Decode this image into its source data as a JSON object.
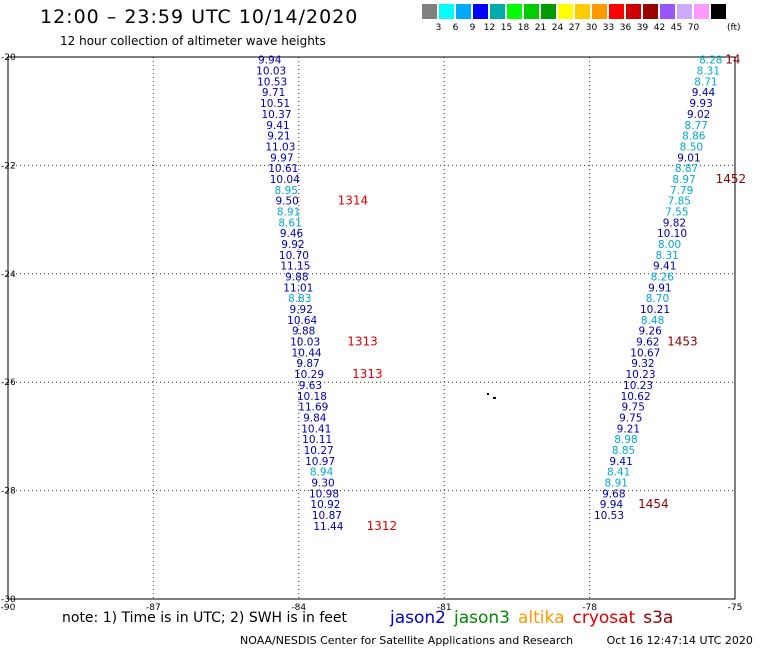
{
  "header": {
    "title": "12:00 – 23:59 UTC 10/14/2020",
    "subtitle": "12 hour collection of altimeter wave heights"
  },
  "scale": {
    "colors": [
      "#808080",
      "#00ffff",
      "#00aaff",
      "#0000ff",
      "#00aaaa",
      "#00ff00",
      "#00cc00",
      "#009900",
      "#ffff00",
      "#ffcc00",
      "#ff9900",
      "#ff0000",
      "#cc0000",
      "#990000",
      "#9955ff",
      "#ccaaff",
      "#ff99ff",
      "#000000"
    ],
    "labels": [
      "3",
      "6",
      "9",
      "12",
      "15",
      "18",
      "21",
      "24",
      "27",
      "30",
      "33",
      "36",
      "39",
      "42",
      "45",
      "70"
    ],
    "unit": "(ft)"
  },
  "colors": {
    "dark_blue": "#0000aa",
    "cyan": "#00aacc",
    "red": "#dd0000",
    "dark_red": "#880000"
  },
  "chart_data": {
    "type": "scatter",
    "xlim": [
      -90,
      -75
    ],
    "ylim": [
      -30,
      -20
    ],
    "x_ticks": [
      "-90",
      "-87",
      "-84",
      "-81",
      "-78",
      "-75"
    ],
    "x_tick_values": [
      -90,
      -87,
      -84,
      -81,
      -78,
      -75
    ],
    "y_ticks": [
      "-20",
      "-22",
      "-24",
      "-26",
      "-28",
      "-30"
    ],
    "y_tick_values": [
      -20,
      -22,
      -24,
      -26,
      -28,
      -30
    ],
    "grid": true,
    "points": [
      {
        "x": -84.6,
        "y": -20.05,
        "text": "9.94",
        "c": "dark_blue"
      },
      {
        "x": -84.57,
        "y": -20.25,
        "text": "10.03",
        "c": "dark_blue"
      },
      {
        "x": -84.55,
        "y": -20.45,
        "text": "10.53",
        "c": "dark_blue"
      },
      {
        "x": -84.52,
        "y": -20.65,
        "text": "9.71",
        "c": "dark_blue"
      },
      {
        "x": -84.49,
        "y": -20.85,
        "text": "10.51",
        "c": "dark_blue"
      },
      {
        "x": -84.46,
        "y": -21.05,
        "text": "10.37",
        "c": "dark_blue"
      },
      {
        "x": -84.43,
        "y": -21.25,
        "text": "9.41",
        "c": "dark_blue"
      },
      {
        "x": -84.41,
        "y": -21.45,
        "text": "9.21",
        "c": "dark_blue"
      },
      {
        "x": -84.38,
        "y": -21.65,
        "text": "11.03",
        "c": "dark_blue"
      },
      {
        "x": -84.35,
        "y": -21.85,
        "text": "9.97",
        "c": "dark_blue"
      },
      {
        "x": -84.32,
        "y": -22.05,
        "text": "10.61",
        "c": "dark_blue"
      },
      {
        "x": -84.29,
        "y": -22.25,
        "text": "10.04",
        "c": "dark_blue"
      },
      {
        "x": -84.26,
        "y": -22.45,
        "text": "8.95",
        "c": "cyan"
      },
      {
        "x": -84.24,
        "y": -22.65,
        "text": "9.50",
        "c": "dark_blue"
      },
      {
        "x": -84.21,
        "y": -22.85,
        "text": "8.91",
        "c": "cyan"
      },
      {
        "x": -84.18,
        "y": -23.05,
        "text": "8.61",
        "c": "cyan"
      },
      {
        "x": -84.15,
        "y": -23.25,
        "text": "9.46",
        "c": "dark_blue"
      },
      {
        "x": -84.12,
        "y": -23.45,
        "text": "9.92",
        "c": "dark_blue"
      },
      {
        "x": -84.1,
        "y": -23.65,
        "text": "10.70",
        "c": "dark_blue"
      },
      {
        "x": -84.07,
        "y": -23.85,
        "text": "11.15",
        "c": "dark_blue"
      },
      {
        "x": -84.04,
        "y": -24.05,
        "text": "9.88",
        "c": "dark_blue"
      },
      {
        "x": -84.01,
        "y": -24.25,
        "text": "11.01",
        "c": "dark_blue"
      },
      {
        "x": -83.98,
        "y": -24.45,
        "text": "8.83",
        "c": "cyan"
      },
      {
        "x": -83.95,
        "y": -24.65,
        "text": "9.92",
        "c": "dark_blue"
      },
      {
        "x": -83.93,
        "y": -24.85,
        "text": "10.64",
        "c": "dark_blue"
      },
      {
        "x": -83.9,
        "y": -25.05,
        "text": "9.88",
        "c": "dark_blue"
      },
      {
        "x": -83.87,
        "y": -25.25,
        "text": "10.03",
        "c": "dark_blue"
      },
      {
        "x": -83.84,
        "y": -25.45,
        "text": "10.44",
        "c": "dark_blue"
      },
      {
        "x": -83.81,
        "y": -25.65,
        "text": "9.87",
        "c": "dark_blue"
      },
      {
        "x": -83.79,
        "y": -25.85,
        "text": "10.29",
        "c": "dark_blue"
      },
      {
        "x": -83.76,
        "y": -26.05,
        "text": "9.63",
        "c": "dark_blue"
      },
      {
        "x": -83.73,
        "y": -26.25,
        "text": "10.18",
        "c": "dark_blue"
      },
      {
        "x": -83.7,
        "y": -26.45,
        "text": "11.69",
        "c": "dark_blue"
      },
      {
        "x": -83.67,
        "y": -26.65,
        "text": "9.84",
        "c": "dark_blue"
      },
      {
        "x": -83.64,
        "y": -26.85,
        "text": "10.41",
        "c": "dark_blue"
      },
      {
        "x": -83.62,
        "y": -27.05,
        "text": "10.11",
        "c": "dark_blue"
      },
      {
        "x": -83.59,
        "y": -27.25,
        "text": "10.27",
        "c": "dark_blue"
      },
      {
        "x": -83.56,
        "y": -27.45,
        "text": "10.97",
        "c": "dark_blue"
      },
      {
        "x": -83.53,
        "y": -27.65,
        "text": "8.94",
        "c": "cyan"
      },
      {
        "x": -83.5,
        "y": -27.85,
        "text": "9.30",
        "c": "dark_blue"
      },
      {
        "x": -83.48,
        "y": -28.05,
        "text": "10.98",
        "c": "dark_blue"
      },
      {
        "x": -83.45,
        "y": -28.25,
        "text": "10.92",
        "c": "dark_blue"
      },
      {
        "x": -83.42,
        "y": -28.45,
        "text": "10.87",
        "c": "dark_blue"
      },
      {
        "x": -83.39,
        "y": -28.65,
        "text": "11.44",
        "c": "dark_blue"
      },
      {
        "x": -75.5,
        "y": -20.05,
        "text": "8.28",
        "c": "cyan"
      },
      {
        "x": -75.55,
        "y": -20.25,
        "text": "8.31",
        "c": "cyan"
      },
      {
        "x": -75.6,
        "y": -20.45,
        "text": "8.71",
        "c": "cyan"
      },
      {
        "x": -75.65,
        "y": -20.65,
        "text": "9.44",
        "c": "dark_blue"
      },
      {
        "x": -75.7,
        "y": -20.85,
        "text": "9.93",
        "c": "dark_blue"
      },
      {
        "x": -75.75,
        "y": -21.05,
        "text": "9.02",
        "c": "dark_blue"
      },
      {
        "x": -75.8,
        "y": -21.25,
        "text": "8.77",
        "c": "cyan"
      },
      {
        "x": -75.85,
        "y": -21.45,
        "text": "8.86",
        "c": "cyan"
      },
      {
        "x": -75.9,
        "y": -21.65,
        "text": "8.50",
        "c": "cyan"
      },
      {
        "x": -75.95,
        "y": -21.85,
        "text": "9.01",
        "c": "dark_blue"
      },
      {
        "x": -76.0,
        "y": -22.05,
        "text": "8.87",
        "c": "cyan"
      },
      {
        "x": -76.05,
        "y": -22.25,
        "text": "8.97",
        "c": "cyan"
      },
      {
        "x": -76.1,
        "y": -22.45,
        "text": "7.79",
        "c": "cyan"
      },
      {
        "x": -76.15,
        "y": -22.65,
        "text": "7.85",
        "c": "cyan"
      },
      {
        "x": -76.2,
        "y": -22.85,
        "text": "7.55",
        "c": "cyan"
      },
      {
        "x": -76.25,
        "y": -23.05,
        "text": "9.82",
        "c": "dark_blue"
      },
      {
        "x": -76.3,
        "y": -23.25,
        "text": "10.10",
        "c": "dark_blue"
      },
      {
        "x": -76.35,
        "y": -23.45,
        "text": "8.00",
        "c": "cyan"
      },
      {
        "x": -76.4,
        "y": -23.65,
        "text": "8.31",
        "c": "cyan"
      },
      {
        "x": -76.45,
        "y": -23.85,
        "text": "9.41",
        "c": "dark_blue"
      },
      {
        "x": -76.5,
        "y": -24.05,
        "text": "8.26",
        "c": "cyan"
      },
      {
        "x": -76.55,
        "y": -24.25,
        "text": "9.91",
        "c": "dark_blue"
      },
      {
        "x": -76.6,
        "y": -24.45,
        "text": "8.70",
        "c": "cyan"
      },
      {
        "x": -76.65,
        "y": -24.65,
        "text": "10.21",
        "c": "dark_blue"
      },
      {
        "x": -76.7,
        "y": -24.85,
        "text": "8.48",
        "c": "cyan"
      },
      {
        "x": -76.75,
        "y": -25.05,
        "text": "9.26",
        "c": "dark_blue"
      },
      {
        "x": -76.8,
        "y": -25.25,
        "text": "9.62",
        "c": "dark_blue"
      },
      {
        "x": -76.85,
        "y": -25.45,
        "text": "10.67",
        "c": "dark_blue"
      },
      {
        "x": -76.9,
        "y": -25.65,
        "text": "9.32",
        "c": "dark_blue"
      },
      {
        "x": -76.95,
        "y": -25.85,
        "text": "10.23",
        "c": "dark_blue"
      },
      {
        "x": -77.0,
        "y": -26.05,
        "text": "10.23",
        "c": "dark_blue"
      },
      {
        "x": -77.05,
        "y": -26.25,
        "text": "10.62",
        "c": "dark_blue"
      },
      {
        "x": -77.1,
        "y": -26.45,
        "text": "9.75",
        "c": "dark_blue"
      },
      {
        "x": -77.15,
        "y": -26.65,
        "text": "9.75",
        "c": "dark_blue"
      },
      {
        "x": -77.2,
        "y": -26.85,
        "text": "9.21",
        "c": "dark_blue"
      },
      {
        "x": -77.25,
        "y": -27.05,
        "text": "8.98",
        "c": "cyan"
      },
      {
        "x": -77.3,
        "y": -27.25,
        "text": "8.85",
        "c": "cyan"
      },
      {
        "x": -77.35,
        "y": -27.45,
        "text": "9.41",
        "c": "dark_blue"
      },
      {
        "x": -77.4,
        "y": -27.65,
        "text": "8.41",
        "c": "cyan"
      },
      {
        "x": -77.45,
        "y": -27.85,
        "text": "8.91",
        "c": "cyan"
      },
      {
        "x": -77.5,
        "y": -28.05,
        "text": "9.68",
        "c": "dark_blue"
      },
      {
        "x": -77.55,
        "y": -28.25,
        "text": "9.94",
        "c": "dark_blue"
      },
      {
        "x": -77.6,
        "y": -28.45,
        "text": "10.53",
        "c": "dark_blue"
      }
    ],
    "labels": [
      {
        "x": -83.2,
        "y": -22.65,
        "text": "1314",
        "c": "red"
      },
      {
        "x": -83.0,
        "y": -25.25,
        "text": "1313",
        "c": "red"
      },
      {
        "x": -82.9,
        "y": -25.85,
        "text": "1313",
        "c": "red"
      },
      {
        "x": -82.6,
        "y": -28.65,
        "text": "1312",
        "c": "red"
      },
      {
        "x": -75.2,
        "y": -20.05,
        "text": "14",
        "c": "dark_red"
      },
      {
        "x": -75.4,
        "y": -22.25,
        "text": "1452",
        "c": "dark_red"
      },
      {
        "x": -76.4,
        "y": -25.25,
        "text": "1453",
        "c": "dark_red"
      },
      {
        "x": -77.0,
        "y": -28.25,
        "text": "1454",
        "c": "dark_red"
      }
    ]
  },
  "note": "note:  1) Time is in UTC;  2) SWH is in feet",
  "legend": [
    {
      "name": "jason2",
      "color": "#0000cc"
    },
    {
      "name": "jason3",
      "color": "#008800"
    },
    {
      "name": "altika",
      "color": "#ff9900"
    },
    {
      "name": "cryosat",
      "color": "#dd0000"
    },
    {
      "name": "s3a",
      "color": "#880000"
    }
  ],
  "footer": {
    "org": "NOAA/NESDIS Center for Satellite Applications and Research",
    "timestamp": "Oct 16 12:47:14 UTC 2020"
  }
}
